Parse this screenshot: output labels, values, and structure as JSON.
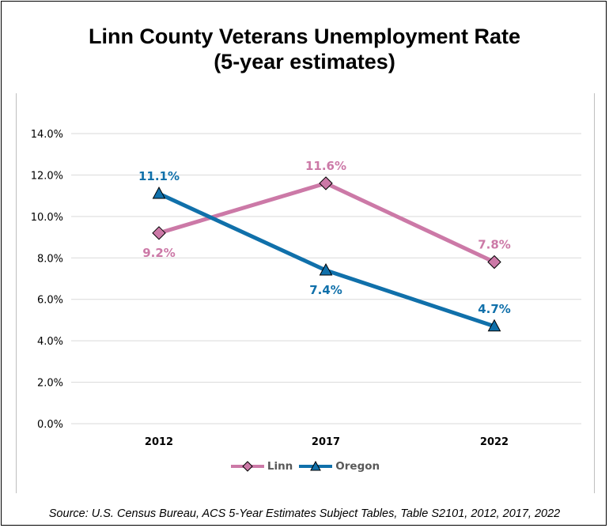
{
  "chart_data": {
    "type": "line",
    "title": "Linn County Veterans Unemployment Rate",
    "subtitle": "(5-year estimates)",
    "categories": [
      "2012",
      "2017",
      "2022"
    ],
    "ylim": [
      0,
      14
    ],
    "yticks": [
      0,
      2,
      4,
      6,
      8,
      10,
      12,
      14
    ],
    "ytick_labels": [
      "0.0%",
      "2.0%",
      "4.0%",
      "6.0%",
      "8.0%",
      "10.0%",
      "12.0%",
      "14.0%"
    ],
    "grid": true,
    "legend": "bottom",
    "series": [
      {
        "name": "Linn",
        "values": [
          9.2,
          11.6,
          7.8
        ],
        "labels": [
          "9.2%",
          "11.6%",
          "7.8%"
        ],
        "color": "#cc79a7",
        "marker": "diamond",
        "label_positions": [
          "below",
          "above",
          "above"
        ]
      },
      {
        "name": "Oregon",
        "values": [
          11.1,
          7.4,
          4.7
        ],
        "labels": [
          "11.1%",
          "7.4%",
          "4.7%"
        ],
        "color": "#1070aa",
        "marker": "triangle",
        "label_positions": [
          "above",
          "below",
          "above"
        ]
      }
    ]
  },
  "source": "Source: U.S. Census Bureau, ACS 5-Year Estimates Subject Tables, Table S2101, 2012, 2017, 2022"
}
